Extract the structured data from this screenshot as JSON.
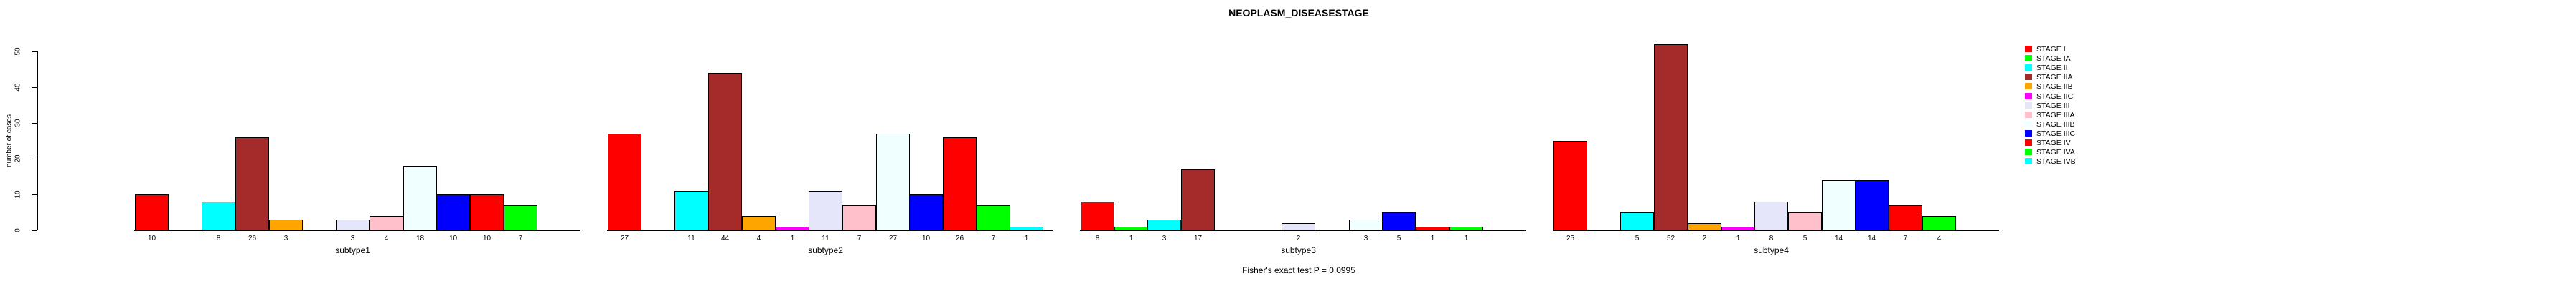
{
  "chart_data": {
    "type": "bar",
    "title": "NEOPLASM_DISEASESTAGE",
    "ylabel": "number of cases",
    "caption": "Fisher's exact test P = 0.0995",
    "ylim": [
      0,
      52
    ],
    "yticks": [
      0,
      10,
      20,
      30,
      40,
      50
    ],
    "grid": false,
    "legend_position": "right-inside",
    "stages": [
      {
        "name": "STAGE I",
        "color": "#FF0000"
      },
      {
        "name": "STAGE IA",
        "color": "#00FF00"
      },
      {
        "name": "STAGE II",
        "color": "#00FFFF"
      },
      {
        "name": "STAGE IIA",
        "color": "#A52A2A"
      },
      {
        "name": "STAGE IIB",
        "color": "#FFA500"
      },
      {
        "name": "STAGE IIC",
        "color": "#FF00FF"
      },
      {
        "name": "STAGE III",
        "color": "#E6E6FA"
      },
      {
        "name": "STAGE IIIA",
        "color": "#FFC0CB"
      },
      {
        "name": "STAGE IIIB",
        "color": "#F0FFFF"
      },
      {
        "name": "STAGE IIIC",
        "color": "#0000FF"
      },
      {
        "name": "STAGE IV",
        "color": "#FF0000"
      },
      {
        "name": "STAGE IVA",
        "color": "#00FF00"
      },
      {
        "name": "STAGE IVB",
        "color": "#00FFFF"
      }
    ],
    "groups": [
      {
        "label": "subtype1",
        "counts": [
          10,
          null,
          8,
          26,
          3,
          null,
          3,
          4,
          18,
          10,
          10,
          7,
          null
        ]
      },
      {
        "label": "subtype2",
        "counts": [
          27,
          null,
          11,
          44,
          4,
          1,
          11,
          7,
          27,
          10,
          26,
          7,
          1
        ]
      },
      {
        "label": "subtype3",
        "counts": [
          8,
          1,
          3,
          17,
          null,
          null,
          2,
          null,
          3,
          5,
          1,
          1,
          null
        ]
      },
      {
        "label": "subtype4",
        "counts": [
          25,
          null,
          5,
          52,
          2,
          1,
          8,
          5,
          14,
          14,
          7,
          4,
          null
        ]
      }
    ]
  }
}
